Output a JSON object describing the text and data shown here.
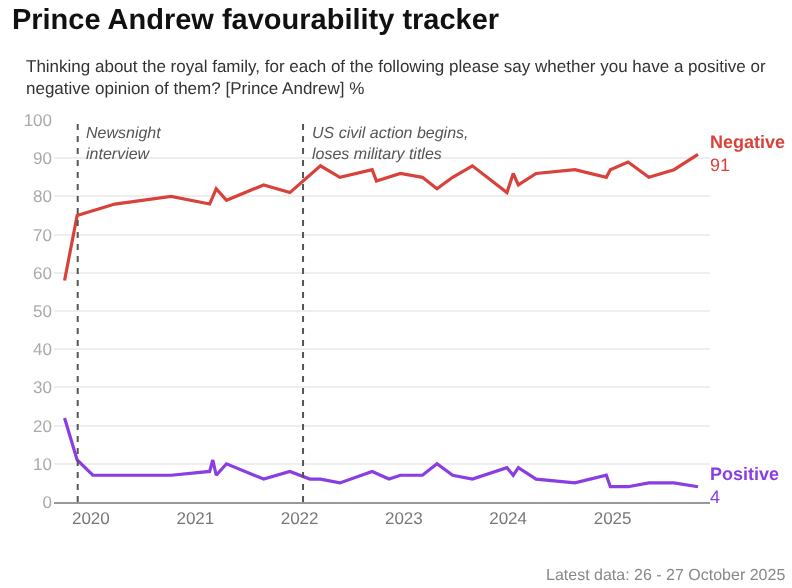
{
  "chart_data": {
    "type": "line",
    "title": "Prince Andrew favourability tracker",
    "subtitle": "Thinking about the royal family, for each of the following please say whether you have a positive or negative opinion of them? [Prince Andrew] %",
    "series": [
      {
        "name": "Negative",
        "color": "#d8423a",
        "x": [
          "2019-10-01",
          "2019-11-14",
          "2020-03-25",
          "2020-10-08",
          "2021-02-20",
          "2021-03-15",
          "2021-04-20",
          "2021-08-28",
          "2021-11-28",
          "2022-03-15",
          "2022-05-22",
          "2022-09-12",
          "2022-09-27",
          "2022-12-20",
          "2023-03-07",
          "2023-04-27",
          "2023-06-21",
          "2023-08-29",
          "2023-12-28",
          "2024-01-19",
          "2024-02-06",
          "2024-04-08",
          "2024-08-22",
          "2024-12-10",
          "2024-12-24",
          "2025-02-24",
          "2025-05-08",
          "2025-08-04",
          "2025-10-27"
        ],
        "values": [
          58,
          75,
          78,
          80,
          78,
          82,
          79,
          83,
          81,
          88,
          85,
          87,
          84,
          86,
          85,
          82,
          85,
          88,
          81,
          86,
          83,
          86,
          87,
          85,
          87,
          89,
          85,
          87,
          91
        ],
        "value_labels": [
          null,
          null,
          null,
          null,
          null,
          null,
          null,
          null,
          null,
          null,
          null,
          null,
          null,
          null,
          null,
          null,
          null,
          null,
          null,
          null,
          null,
          null,
          null,
          null,
          null,
          null,
          null,
          null,
          "91"
        ]
      },
      {
        "name": "Positive",
        "color": "#8a3de0",
        "x": [
          "2019-10-01",
          "2019-11-14",
          "2020-01-08",
          "2020-10-08",
          "2021-02-20",
          "2021-03-03",
          "2021-03-15",
          "2021-04-20",
          "2021-08-28",
          "2021-11-28",
          "2022-02-06",
          "2022-03-15",
          "2022-05-22",
          "2022-09-12",
          "2022-11-10",
          "2022-12-20",
          "2023-03-07",
          "2023-04-27",
          "2023-06-21",
          "2023-08-29",
          "2023-12-28",
          "2024-01-19",
          "2024-02-06",
          "2024-04-08",
          "2024-08-22",
          "2024-12-10",
          "2024-12-24",
          "2025-02-24",
          "2025-05-08",
          "2025-08-04",
          "2025-10-27"
        ],
        "values": [
          22,
          11,
          7,
          7,
          8,
          11,
          7,
          10,
          6,
          8,
          6,
          6,
          5,
          8,
          6,
          7,
          7,
          10,
          7,
          6,
          9,
          7,
          9,
          6,
          5,
          7,
          4,
          4,
          5,
          5,
          4
        ],
        "value_labels": [
          null,
          null,
          null,
          null,
          null,
          null,
          null,
          null,
          null,
          null,
          null,
          null,
          null,
          null,
          null,
          null,
          null,
          null,
          null,
          null,
          null,
          null,
          null,
          null,
          null,
          null,
          null,
          null,
          null,
          null,
          "4"
        ]
      }
    ],
    "xlim": [
      "2019-08-25",
      "2025-12-08"
    ],
    "xticks": [
      {
        "value": "2020-01-01",
        "label": "2020"
      },
      {
        "value": "2021-01-01",
        "label": "2021"
      },
      {
        "value": "2022-01-01",
        "label": "2022"
      },
      {
        "value": "2023-01-01",
        "label": "2023"
      },
      {
        "value": "2024-01-01",
        "label": "2024"
      },
      {
        "value": "2025-01-01",
        "label": "2025"
      }
    ],
    "ylim": [
      0,
      100
    ],
    "yticks": [
      0,
      10,
      20,
      30,
      40,
      50,
      60,
      70,
      80,
      90,
      100
    ],
    "grid": "y",
    "legend": false,
    "marker": "none",
    "line_style": "solid",
    "ref_lines": [
      {
        "axis": "x",
        "value": "2019-11-16",
        "label": "Newsnight\ninterview",
        "color": "#555555",
        "line_style": "dotted"
      },
      {
        "axis": "x",
        "value": "2022-01-13",
        "label": "US civil action begins,\nloses military titles",
        "color": "#555555",
        "line_style": "dotted"
      }
    ],
    "annotations": [
      "Latest data: 26 - 27 October 2025"
    ]
  }
}
